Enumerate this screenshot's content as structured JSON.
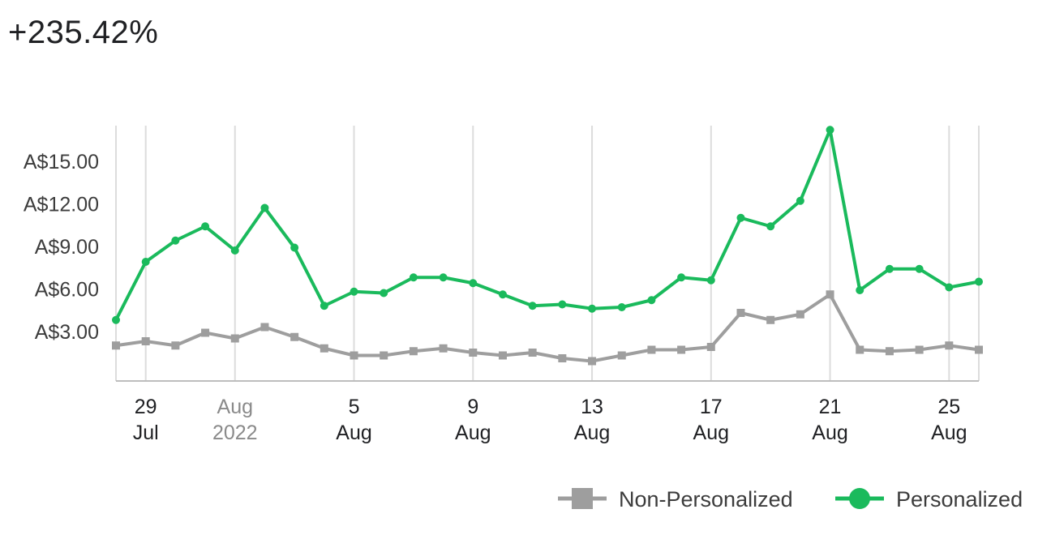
{
  "header": {
    "value": "+235.42%"
  },
  "colors": {
    "personalized": "#1aba5c",
    "non_personalized": "#9e9e9e",
    "grid": "#dcdcdc",
    "axis": "#bdbdbd"
  },
  "chart_data": {
    "type": "line",
    "x_start": "2022-07-28",
    "x": [
      "2022-07-28",
      "2022-07-29",
      "2022-07-30",
      "2022-07-31",
      "2022-08-01",
      "2022-08-02",
      "2022-08-03",
      "2022-08-04",
      "2022-08-05",
      "2022-08-06",
      "2022-08-07",
      "2022-08-08",
      "2022-08-09",
      "2022-08-10",
      "2022-08-11",
      "2022-08-12",
      "2022-08-13",
      "2022-08-14",
      "2022-08-15",
      "2022-08-16",
      "2022-08-17",
      "2022-08-18",
      "2022-08-19",
      "2022-08-20",
      "2022-08-21",
      "2022-08-22",
      "2022-08-23",
      "2022-08-24",
      "2022-08-25",
      "2022-08-26"
    ],
    "series": [
      {
        "name": "Non-Personalized",
        "marker": "square",
        "values": [
          2.0,
          2.3,
          2.0,
          2.9,
          2.5,
          3.3,
          2.6,
          1.8,
          1.3,
          1.3,
          1.6,
          1.8,
          1.5,
          1.3,
          1.5,
          1.1,
          0.9,
          1.3,
          1.7,
          1.7,
          1.9,
          4.3,
          3.8,
          4.2,
          5.6,
          1.7,
          1.6,
          1.7,
          2.0,
          1.7
        ]
      },
      {
        "name": "Personalized",
        "marker": "circle",
        "values": [
          3.8,
          7.9,
          9.4,
          10.4,
          8.7,
          11.7,
          8.9,
          4.8,
          5.8,
          5.7,
          6.8,
          6.8,
          6.4,
          5.6,
          4.8,
          4.9,
          4.6,
          4.7,
          5.2,
          6.8,
          6.6,
          11.0,
          10.4,
          12.2,
          17.2,
          5.9,
          7.4,
          7.4,
          6.1,
          6.5
        ]
      }
    ],
    "yticks": [
      "A$3.00",
      "A$6.00",
      "A$9.00",
      "A$12.00",
      "A$15.00"
    ],
    "ytick_values": [
      3,
      6,
      9,
      12,
      15
    ],
    "ylim": [
      -0.5,
      17.5
    ],
    "xticks": [
      {
        "date": "2022-07-29",
        "line1": "29",
        "line2": "Jul",
        "muted": false
      },
      {
        "date": "2022-08-01",
        "line1": "Aug",
        "line2": "2022",
        "muted": true
      },
      {
        "date": "2022-08-05",
        "line1": "5",
        "line2": "Aug",
        "muted": false
      },
      {
        "date": "2022-08-09",
        "line1": "9",
        "line2": "Aug",
        "muted": false
      },
      {
        "date": "2022-08-13",
        "line1": "13",
        "line2": "Aug",
        "muted": false
      },
      {
        "date": "2022-08-17",
        "line1": "17",
        "line2": "Aug",
        "muted": false
      },
      {
        "date": "2022-08-21",
        "line1": "21",
        "line2": "Aug",
        "muted": false
      },
      {
        "date": "2022-08-25",
        "line1": "25",
        "line2": "Aug",
        "muted": false
      }
    ],
    "legend": [
      "Non-Personalized",
      "Personalized"
    ],
    "legend_position": "bottom-right",
    "grid": "vertical"
  }
}
